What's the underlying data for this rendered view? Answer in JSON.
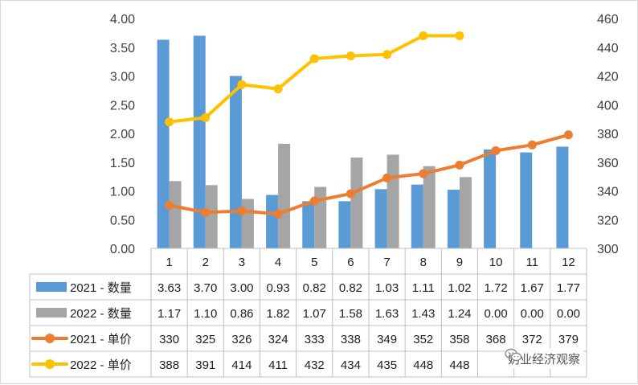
{
  "chart_data": {
    "type": "bar+line",
    "categories": [
      "1",
      "2",
      "3",
      "4",
      "5",
      "6",
      "7",
      "8",
      "9",
      "10",
      "11",
      "12"
    ],
    "series": [
      {
        "name": "2021 - 数量",
        "kind": "bar",
        "axis": "left",
        "color": "#5b9bd5",
        "values": [
          3.63,
          3.7,
          3.0,
          0.93,
          0.82,
          0.82,
          1.03,
          1.11,
          1.02,
          1.72,
          1.67,
          1.77
        ],
        "labels": [
          "3.63",
          "3.70",
          "3.00",
          "0.93",
          "0.82",
          "0.82",
          "1.03",
          "1.11",
          "1.02",
          "1.72",
          "1.67",
          "1.77"
        ]
      },
      {
        "name": "2022 - 数量",
        "kind": "bar",
        "axis": "left",
        "color": "#a5a5a5",
        "values": [
          1.17,
          1.1,
          0.86,
          1.82,
          1.07,
          1.58,
          1.63,
          1.43,
          1.24,
          0.0,
          0.0,
          0.0
        ],
        "labels": [
          "1.17",
          "1.10",
          "0.86",
          "1.82",
          "1.07",
          "1.58",
          "1.63",
          "1.43",
          "1.24",
          "0.00",
          "0.00",
          "0.00"
        ]
      },
      {
        "name": "2021 - 单价",
        "kind": "line",
        "axis": "right",
        "color": "#ed7d31",
        "values": [
          330,
          325,
          326,
          324,
          333,
          338,
          349,
          352,
          358,
          368,
          372,
          379
        ],
        "labels": [
          "330",
          "325",
          "326",
          "324",
          "333",
          "338",
          "349",
          "352",
          "358",
          "368",
          "372",
          "379"
        ]
      },
      {
        "name": "2022 - 单价",
        "kind": "line",
        "axis": "right",
        "color": "#ffc000",
        "values": [
          388,
          391,
          414,
          411,
          432,
          434,
          435,
          448,
          448,
          null,
          null,
          null
        ],
        "labels": [
          "388",
          "391",
          "414",
          "411",
          "432",
          "434",
          "435",
          "448",
          "448",
          "",
          "",
          ""
        ]
      }
    ],
    "y_left": {
      "min": 0,
      "max": 4,
      "ticks": [
        "0.00",
        "0.50",
        "1.00",
        "1.50",
        "2.00",
        "2.50",
        "3.00",
        "3.50",
        "4.00"
      ]
    },
    "y_right": {
      "min": 300,
      "max": 460,
      "ticks": [
        "300",
        "320",
        "340",
        "360",
        "380",
        "400",
        "420",
        "440",
        "460"
      ]
    },
    "legend": "data-table-bottom",
    "watermark": "奶业经济观察"
  }
}
